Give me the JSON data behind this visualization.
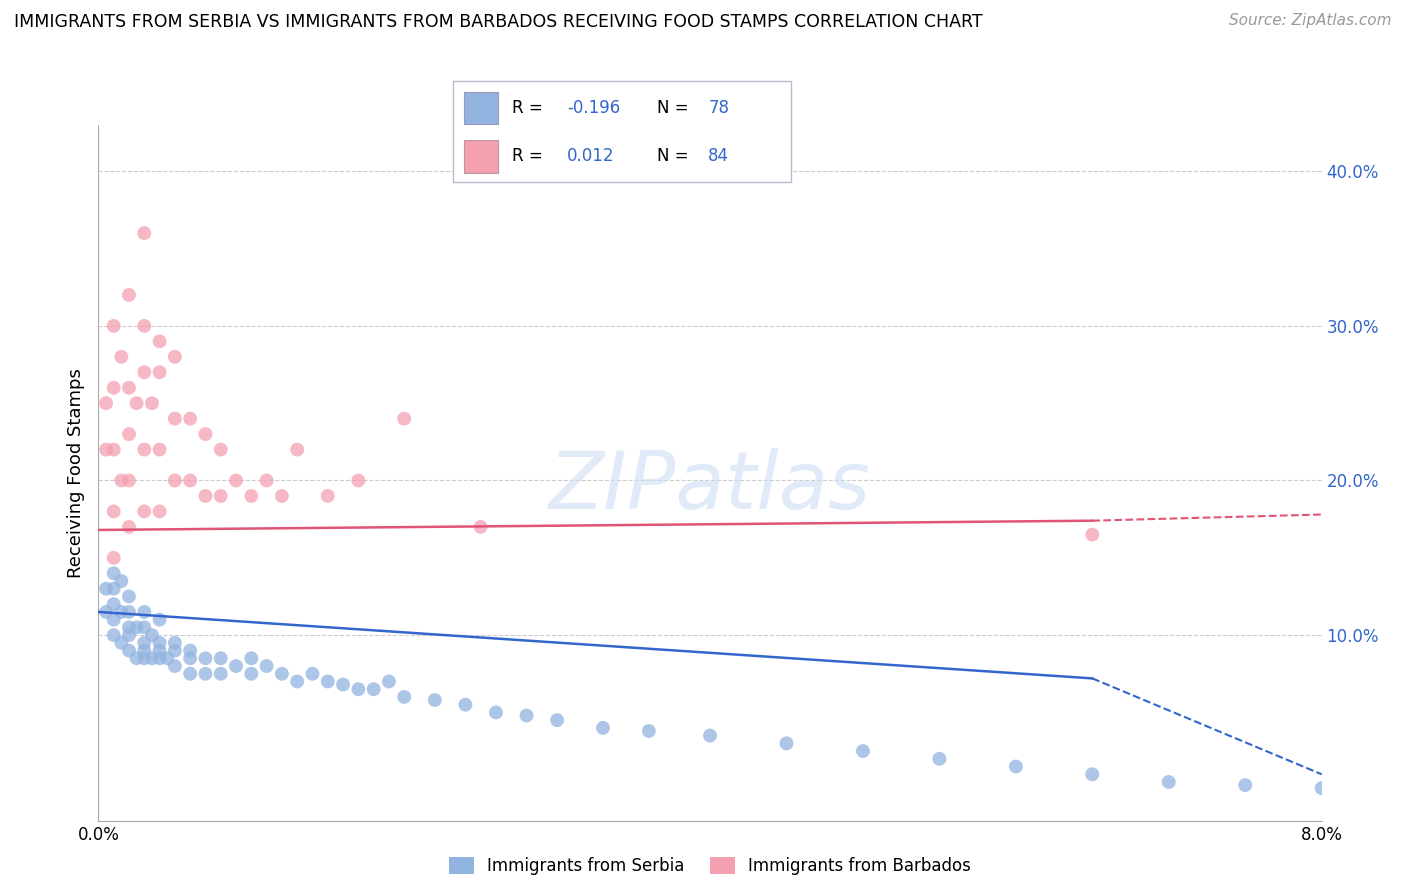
{
  "title": "IMMIGRANTS FROM SERBIA VS IMMIGRANTS FROM BARBADOS RECEIVING FOOD STAMPS CORRELATION CHART",
  "source": "Source: ZipAtlas.com",
  "ylabel": "Receiving Food Stamps",
  "y_tick_vals": [
    0.1,
    0.2,
    0.3,
    0.4
  ],
  "y_tick_labels": [
    "10.0%",
    "20.0%",
    "30.0%",
    "40.0%"
  ],
  "x_lim": [
    0.0,
    0.08
  ],
  "y_lim": [
    -0.02,
    0.43
  ],
  "serbia_color": "#92b4e0",
  "barbados_color": "#f4a0b0",
  "serbia_line_color": "#3366cc",
  "barbados_line_color": "#e05575",
  "serbia_scatter_x": [
    0.0005,
    0.0005,
    0.001,
    0.001,
    0.001,
    0.001,
    0.001,
    0.0015,
    0.0015,
    0.0015,
    0.002,
    0.002,
    0.002,
    0.002,
    0.002,
    0.0025,
    0.0025,
    0.003,
    0.003,
    0.003,
    0.003,
    0.003,
    0.0035,
    0.0035,
    0.004,
    0.004,
    0.004,
    0.004,
    0.0045,
    0.005,
    0.005,
    0.005,
    0.006,
    0.006,
    0.006,
    0.007,
    0.007,
    0.008,
    0.008,
    0.009,
    0.01,
    0.01,
    0.011,
    0.012,
    0.013,
    0.014,
    0.015,
    0.016,
    0.017,
    0.018,
    0.019,
    0.02,
    0.022,
    0.024,
    0.026,
    0.028,
    0.03,
    0.033,
    0.036,
    0.04,
    0.045,
    0.05,
    0.055,
    0.06,
    0.065,
    0.07,
    0.075,
    0.08
  ],
  "serbia_scatter_y": [
    0.115,
    0.13,
    0.1,
    0.11,
    0.12,
    0.13,
    0.14,
    0.095,
    0.115,
    0.135,
    0.09,
    0.1,
    0.105,
    0.115,
    0.125,
    0.085,
    0.105,
    0.085,
    0.09,
    0.095,
    0.105,
    0.115,
    0.085,
    0.1,
    0.085,
    0.09,
    0.095,
    0.11,
    0.085,
    0.08,
    0.09,
    0.095,
    0.075,
    0.085,
    0.09,
    0.075,
    0.085,
    0.075,
    0.085,
    0.08,
    0.075,
    0.085,
    0.08,
    0.075,
    0.07,
    0.075,
    0.07,
    0.068,
    0.065,
    0.065,
    0.07,
    0.06,
    0.058,
    0.055,
    0.05,
    0.048,
    0.045,
    0.04,
    0.038,
    0.035,
    0.03,
    0.025,
    0.02,
    0.015,
    0.01,
    0.005,
    0.003,
    0.001
  ],
  "barbados_scatter_x": [
    0.0005,
    0.0005,
    0.001,
    0.001,
    0.001,
    0.001,
    0.001,
    0.0015,
    0.0015,
    0.002,
    0.002,
    0.002,
    0.002,
    0.002,
    0.0025,
    0.003,
    0.003,
    0.003,
    0.003,
    0.003,
    0.0035,
    0.004,
    0.004,
    0.004,
    0.004,
    0.005,
    0.005,
    0.005,
    0.006,
    0.006,
    0.007,
    0.007,
    0.008,
    0.008,
    0.009,
    0.01,
    0.011,
    0.012,
    0.013,
    0.015,
    0.017,
    0.02,
    0.025,
    0.065
  ],
  "barbados_scatter_y": [
    0.22,
    0.25,
    0.15,
    0.18,
    0.22,
    0.26,
    0.3,
    0.2,
    0.28,
    0.17,
    0.2,
    0.23,
    0.26,
    0.32,
    0.25,
    0.18,
    0.22,
    0.27,
    0.3,
    0.36,
    0.25,
    0.18,
    0.22,
    0.27,
    0.29,
    0.2,
    0.24,
    0.28,
    0.2,
    0.24,
    0.19,
    0.23,
    0.19,
    0.22,
    0.2,
    0.19,
    0.2,
    0.19,
    0.22,
    0.19,
    0.2,
    0.24,
    0.17,
    0.165
  ],
  "serbia_trend_x0": 0.0,
  "serbia_trend_x_solid": 0.065,
  "serbia_trend_x1": 0.08,
  "serbia_trend_y0": 0.115,
  "serbia_trend_y_solid": 0.072,
  "serbia_trend_y1": 0.01,
  "barbados_trend_x0": 0.0,
  "barbados_trend_x_solid": 0.065,
  "barbados_trend_x1": 0.08,
  "barbados_trend_y0": 0.168,
  "barbados_trend_y_solid": 0.174,
  "barbados_trend_y1": 0.178
}
